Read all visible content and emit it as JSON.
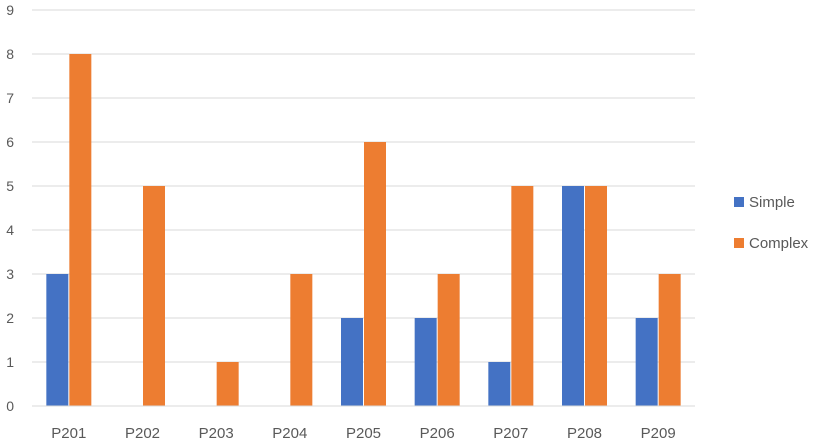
{
  "chart_data": {
    "type": "bar",
    "categories": [
      "P201",
      "P202",
      "P203",
      "P204",
      "P205",
      "P206",
      "P207",
      "P208",
      "P209"
    ],
    "series": [
      {
        "name": "Simple",
        "values": [
          3,
          0,
          0,
          0,
          2,
          2,
          1,
          5,
          2
        ],
        "color": "#4472C4"
      },
      {
        "name": "Complex",
        "values": [
          8,
          5,
          1,
          3,
          6,
          3,
          5,
          5,
          3
        ],
        "color": "#ED7D31"
      }
    ],
    "yticks": [
      "0",
      "1",
      "2",
      "3",
      "4",
      "5",
      "6",
      "7",
      "8",
      "9"
    ],
    "ylim": [
      0,
      9
    ],
    "grid": true,
    "legend": "right",
    "title": "",
    "xlabel": "",
    "ylabel": ""
  }
}
